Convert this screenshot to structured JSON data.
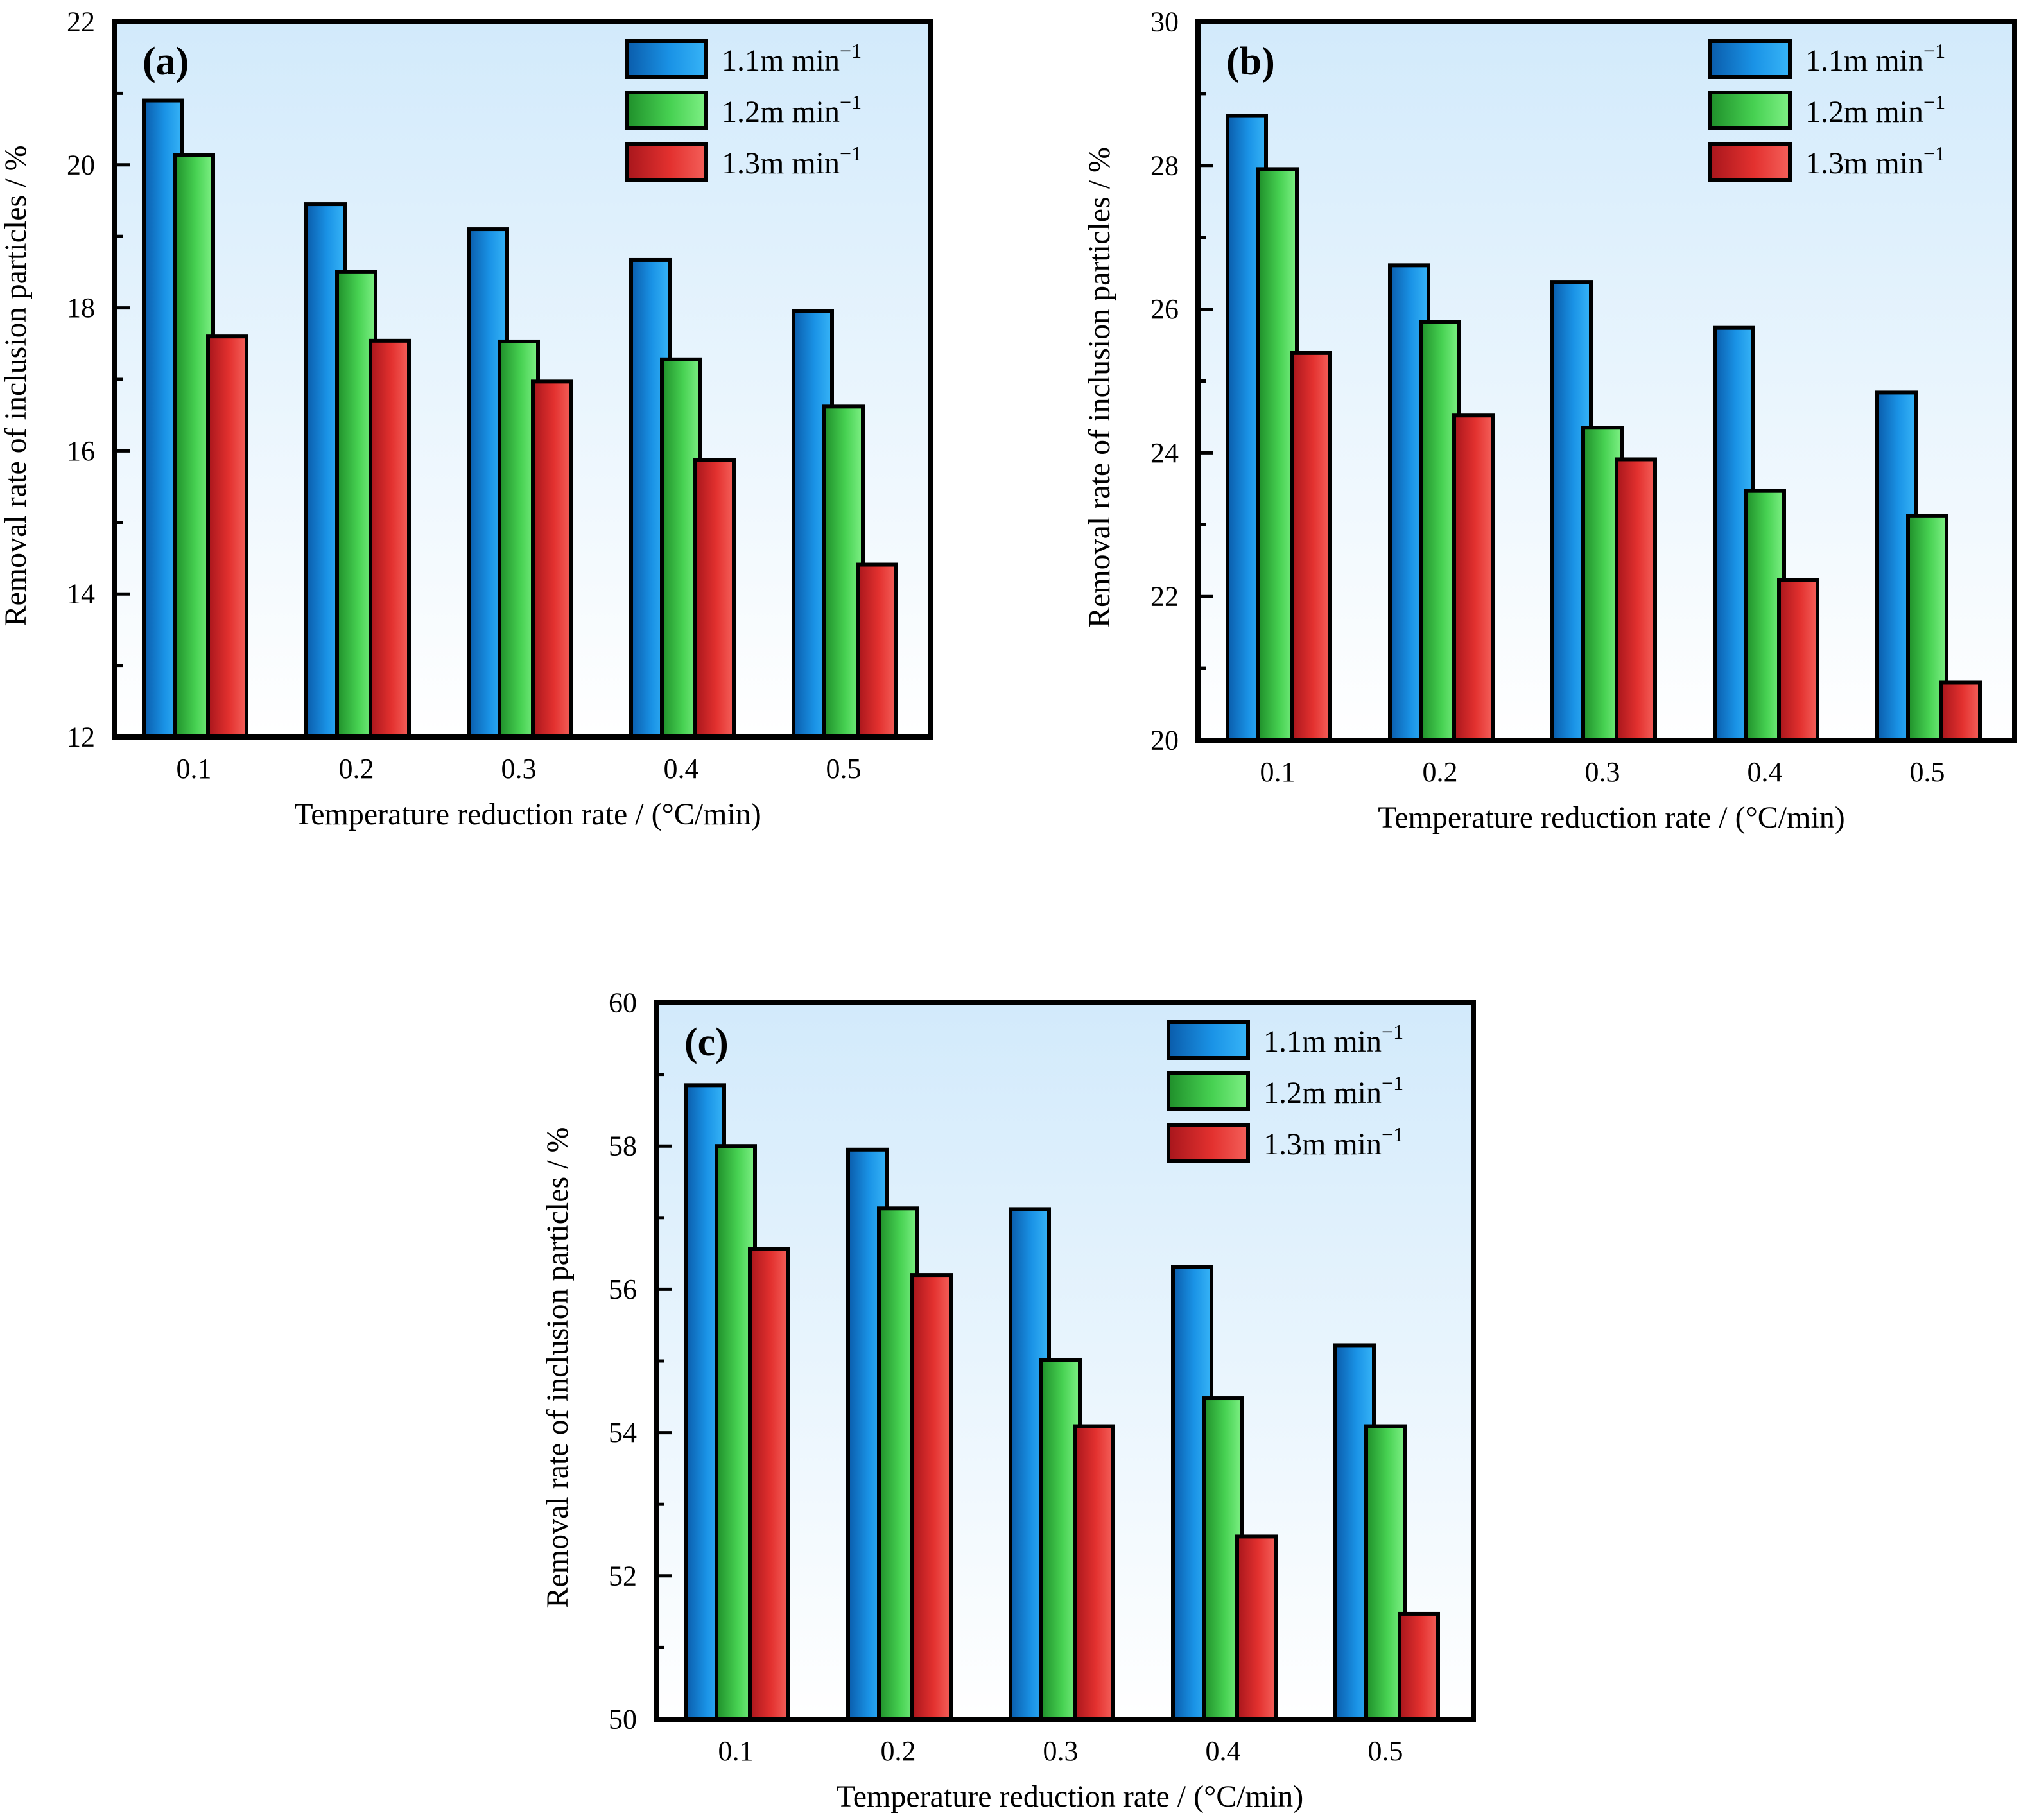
{
  "chart_data": [
    {
      "type": "bar",
      "panel_label": "(a)",
      "xlabel": "Temperature reduction rate / (°C/min)",
      "ylabel": "Removal rate of inclusion particles / %",
      "ylim": [
        12,
        22
      ],
      "yticks": [
        "12",
        "14",
        "16",
        "18",
        "20",
        "22"
      ],
      "categories": [
        "0.1",
        "0.2",
        "0.3",
        "0.4",
        "0.5"
      ],
      "legend_position": "top-right",
      "series": [
        {
          "name": "1.1m min",
          "name_base": "1.1m min",
          "name_sup": "−1",
          "color": "#1a8fe0",
          "values": [
            20.9,
            19.45,
            19.1,
            18.67,
            17.96
          ]
        },
        {
          "name": "1.2m min",
          "name_base": "1.2m min",
          "name_sup": "−1",
          "color": "#39c944",
          "values": [
            20.14,
            18.5,
            17.53,
            17.28,
            16.62
          ]
        },
        {
          "name": "1.3m min",
          "name_base": "1.3m min",
          "name_sup": "−1",
          "color": "#e02b2b",
          "values": [
            17.6,
            17.54,
            16.97,
            15.87,
            14.41
          ]
        }
      ]
    },
    {
      "type": "bar",
      "panel_label": "(b)",
      "xlabel": "Temperature reduction rate / (°C/min)",
      "ylabel": "Removal rate of inclusion particles / %",
      "ylim": [
        20,
        30
      ],
      "yticks": [
        "20",
        "22",
        "24",
        "26",
        "28",
        "30"
      ],
      "categories": [
        "0.1",
        "0.2",
        "0.3",
        "0.4",
        "0.5"
      ],
      "legend_position": "top-right",
      "series": [
        {
          "name": "1.1m min",
          "name_base": "1.1m min",
          "name_sup": "−1",
          "color": "#1a8fe0",
          "values": [
            28.69,
            26.61,
            26.38,
            25.74,
            24.84
          ]
        },
        {
          "name": "1.2m min",
          "name_base": "1.2m min",
          "name_sup": "−1",
          "color": "#39c944",
          "values": [
            27.95,
            25.82,
            24.35,
            23.47,
            23.12
          ]
        },
        {
          "name": "1.3m min",
          "name_base": "1.3m min",
          "name_sup": "−1",
          "color": "#e02b2b",
          "values": [
            25.39,
            24.52,
            23.91,
            22.23,
            20.8
          ]
        }
      ]
    },
    {
      "type": "bar",
      "panel_label": "(c)",
      "xlabel": "Temperature reduction rate / (°C/min)",
      "ylabel": "Removal rate of inclusion particles / %",
      "ylim": [
        50,
        60
      ],
      "yticks": [
        "50",
        "52",
        "54",
        "56",
        "58",
        "60"
      ],
      "categories": [
        "0.1",
        "0.2",
        "0.3",
        "0.4",
        "0.5"
      ],
      "legend_position": "top-right",
      "series": [
        {
          "name": "1.1m min",
          "name_base": "1.1m min",
          "name_sup": "−1",
          "color": "#1a8fe0",
          "values": [
            58.85,
            57.95,
            57.12,
            56.31,
            55.22
          ]
        },
        {
          "name": "1.2m min",
          "name_base": "1.2m min",
          "name_sup": "−1",
          "color": "#39c944",
          "values": [
            58.0,
            57.13,
            55.01,
            54.48,
            54.09
          ]
        },
        {
          "name": "1.3m min",
          "name_base": "1.3m min",
          "name_sup": "−1",
          "color": "#e02b2b",
          "values": [
            56.56,
            56.2,
            54.09,
            52.55,
            51.47
          ]
        }
      ]
    }
  ]
}
